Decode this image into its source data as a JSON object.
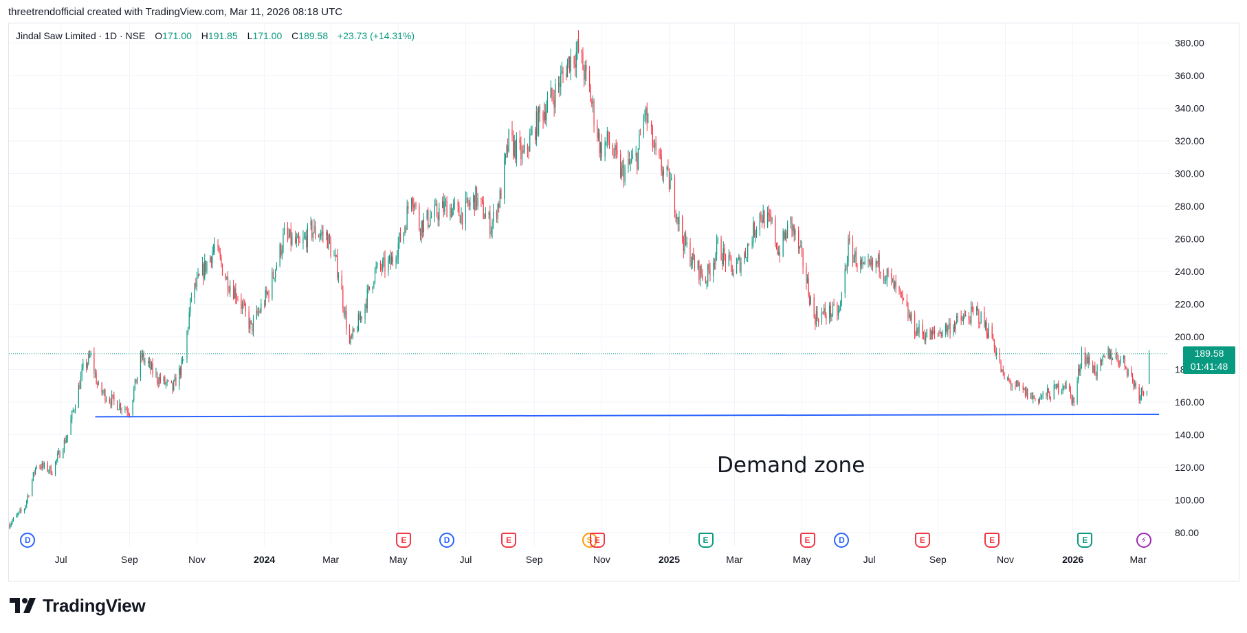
{
  "caption": "threetrendofficial created with TradingView.com, Mar 11, 2026 08:18 UTC",
  "legend": {
    "symbol": "Jindal Saw Limited · 1D · NSE",
    "o_label": "O",
    "o_value": "171.00",
    "h_label": "H",
    "h_value": "191.85",
    "l_label": "L",
    "l_value": "171.00",
    "c_label": "C",
    "c_value": "189.58",
    "change": "+23.73 (+14.31%)"
  },
  "price_tag": {
    "price": "189.58",
    "countdown": "01:41:48"
  },
  "annotation": "Demand zone",
  "brand": {
    "name": "TradingView"
  },
  "colors": {
    "up": "#089981",
    "down": "#f23645",
    "support_line": "#2962ff",
    "grid": "#f0f3fa"
  },
  "x_axis_labels": [
    {
      "text": "Jul",
      "bold": false
    },
    {
      "text": "Sep",
      "bold": false
    },
    {
      "text": "Nov",
      "bold": false
    },
    {
      "text": "2024",
      "bold": true
    },
    {
      "text": "Mar",
      "bold": false
    },
    {
      "text": "May",
      "bold": false
    },
    {
      "text": "Jul",
      "bold": false
    },
    {
      "text": "Sep",
      "bold": false
    },
    {
      "text": "Nov",
      "bold": false
    },
    {
      "text": "2025",
      "bold": true
    },
    {
      "text": "Mar",
      "bold": false
    },
    {
      "text": "May",
      "bold": false
    },
    {
      "text": "Jul",
      "bold": false
    },
    {
      "text": "Sep",
      "bold": false
    },
    {
      "text": "Nov",
      "bold": false
    },
    {
      "text": "2026",
      "bold": true
    },
    {
      "text": "Mar",
      "bold": false
    }
  ],
  "events": [
    {
      "letter": "D",
      "shape": "circle",
      "color": "#2962ff"
    },
    {
      "letter": "E",
      "shape": "tag",
      "color": "#f23645"
    },
    {
      "letter": "D",
      "shape": "circle",
      "color": "#2962ff"
    },
    {
      "letter": "E",
      "shape": "tag",
      "color": "#f23645"
    },
    {
      "letter": "S",
      "shape": "circle",
      "color": "#ff9800"
    },
    {
      "letter": "E",
      "shape": "tag",
      "color": "#f23645"
    },
    {
      "letter": "E",
      "shape": "tag",
      "color": "#089981"
    },
    {
      "letter": "E",
      "shape": "tag",
      "color": "#f23645"
    },
    {
      "letter": "D",
      "shape": "circle",
      "color": "#2962ff"
    },
    {
      "letter": "E",
      "shape": "tag",
      "color": "#f23645"
    },
    {
      "letter": "E",
      "shape": "tag",
      "color": "#f23645"
    },
    {
      "letter": "E",
      "shape": "tag",
      "color": "#089981"
    },
    {
      "letter": "⚡",
      "shape": "circle",
      "color": "#9c27b0"
    }
  ],
  "chart_data": {
    "type": "candlestick",
    "symbol": "Jindal Saw Limited",
    "interval": "1D",
    "exchange": "NSE",
    "y_ticks": [
      80,
      100,
      120,
      140,
      160,
      180,
      200,
      220,
      240,
      260,
      280,
      300,
      320,
      340,
      360,
      380
    ],
    "y_tick_labels": [
      "80.00",
      "100.00",
      "120.00",
      "140.00",
      "160.00",
      "180.00",
      "200.00",
      "220.00",
      "240.00",
      "260.00",
      "280.00",
      "300.00",
      "320.00",
      "340.00",
      "360.00",
      "380.00"
    ],
    "ylim": [
      72,
      392
    ],
    "x_range": [
      "2023-05-15",
      "2026-03-28"
    ],
    "last_close": 189.58,
    "support_line": {
      "start": {
        "date": "2023-08-01",
        "price": 151
      },
      "end": {
        "date": "2026-03-20",
        "price": 152.5
      }
    },
    "waypoints": [
      [
        "2023-05-15",
        85
      ],
      [
        "2023-05-29",
        95
      ],
      [
        "2023-06-09",
        122
      ],
      [
        "2023-06-23",
        118
      ],
      [
        "2023-07-07",
        140
      ],
      [
        "2023-07-21",
        180
      ],
      [
        "2023-07-28",
        188
      ],
      [
        "2023-08-04",
        168
      ],
      [
        "2023-08-18",
        160
      ],
      [
        "2023-09-01",
        155
      ],
      [
        "2023-09-12",
        188
      ],
      [
        "2023-09-26",
        175
      ],
      [
        "2023-10-10",
        168
      ],
      [
        "2023-10-20",
        185
      ],
      [
        "2023-10-27",
        225
      ],
      [
        "2023-11-10",
        245
      ],
      [
        "2023-11-17",
        255
      ],
      [
        "2023-11-28",
        235
      ],
      [
        "2023-12-08",
        225
      ],
      [
        "2023-12-20",
        205
      ],
      [
        "2024-01-05",
        228
      ],
      [
        "2024-01-19",
        262
      ],
      [
        "2024-02-02",
        255
      ],
      [
        "2024-02-12",
        265
      ],
      [
        "2024-02-26",
        262
      ],
      [
        "2024-03-08",
        240
      ],
      [
        "2024-03-18",
        195
      ],
      [
        "2024-03-28",
        212
      ],
      [
        "2024-04-10",
        240
      ],
      [
        "2024-04-24",
        245
      ],
      [
        "2024-05-06",
        265
      ],
      [
        "2024-05-13",
        290
      ],
      [
        "2024-05-20",
        268
      ],
      [
        "2024-06-03",
        275
      ],
      [
        "2024-06-14",
        280
      ],
      [
        "2024-06-27",
        275
      ],
      [
        "2024-07-10",
        285
      ],
      [
        "2024-07-24",
        268
      ],
      [
        "2024-08-01",
        285
      ],
      [
        "2024-08-09",
        320
      ],
      [
        "2024-08-22",
        310
      ],
      [
        "2024-09-06",
        335
      ],
      [
        "2024-09-20",
        350
      ],
      [
        "2024-10-03",
        370
      ],
      [
        "2024-10-11",
        375
      ],
      [
        "2024-10-21",
        350
      ],
      [
        "2024-10-31",
        315
      ],
      [
        "2024-11-07",
        320
      ],
      [
        "2024-11-19",
        300
      ],
      [
        "2024-12-03",
        310
      ],
      [
        "2024-12-10",
        338
      ],
      [
        "2024-12-20",
        310
      ],
      [
        "2025-01-03",
        292
      ],
      [
        "2025-01-13",
        260
      ],
      [
        "2025-01-23",
        245
      ],
      [
        "2025-02-03",
        235
      ],
      [
        "2025-02-14",
        255
      ],
      [
        "2025-02-28",
        240
      ],
      [
        "2025-03-10",
        250
      ],
      [
        "2025-03-24",
        275
      ],
      [
        "2025-04-04",
        268
      ],
      [
        "2025-04-10",
        252
      ],
      [
        "2025-04-21",
        270
      ],
      [
        "2025-05-02",
        245
      ],
      [
        "2025-05-12",
        212
      ],
      [
        "2025-05-26",
        215
      ],
      [
        "2025-06-04",
        215
      ],
      [
        "2025-06-12",
        255
      ],
      [
        "2025-06-26",
        240
      ],
      [
        "2025-07-10",
        245
      ],
      [
        "2025-07-28",
        225
      ],
      [
        "2025-08-11",
        205
      ],
      [
        "2025-08-25",
        200
      ],
      [
        "2025-09-08",
        205
      ],
      [
        "2025-09-22",
        210
      ],
      [
        "2025-10-06",
        215
      ],
      [
        "2025-10-20",
        200
      ],
      [
        "2025-10-30",
        175
      ],
      [
        "2025-11-13",
        168
      ],
      [
        "2025-11-28",
        162
      ],
      [
        "2025-12-12",
        165
      ],
      [
        "2025-12-24",
        172
      ],
      [
        "2026-01-02",
        160
      ],
      [
        "2026-01-09",
        190
      ],
      [
        "2026-01-23",
        178
      ],
      [
        "2026-02-02",
        190
      ],
      [
        "2026-02-16",
        185
      ],
      [
        "2026-03-02",
        165
      ],
      [
        "2026-03-10",
        171
      ]
    ],
    "last_candle": {
      "date": "2026-03-11",
      "open": 171.0,
      "high": 191.85,
      "low": 171.0,
      "close": 189.58
    }
  }
}
